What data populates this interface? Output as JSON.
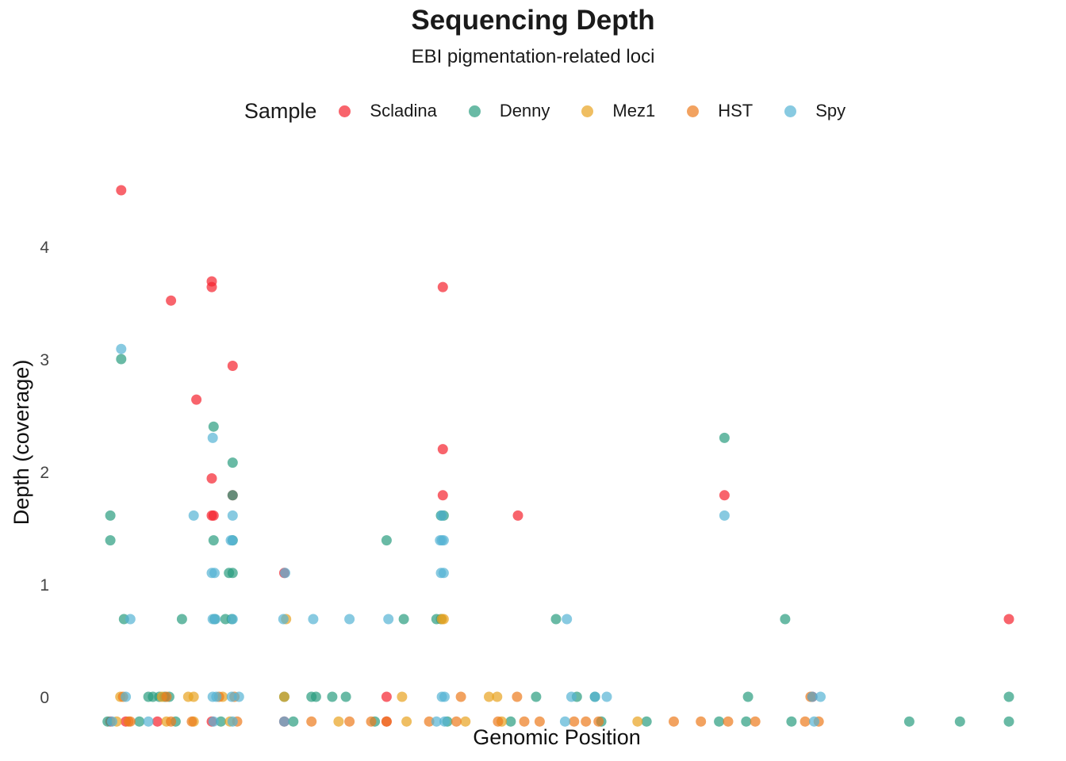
{
  "chart_data": {
    "type": "scatter",
    "title": "Sequencing Depth",
    "subtitle": "EBI pigmentation-related loci",
    "xlabel": "Genomic Position",
    "ylabel": "Depth (coverage)",
    "legend_title": "Sample",
    "legend_position": "top",
    "grid": false,
    "ylim": [
      -0.2,
      4.7
    ],
    "xlim": [
      0,
      100
    ],
    "y_ticks": [
      0,
      1,
      2,
      3,
      4
    ],
    "series": [
      {
        "name": "Scladina",
        "color": "#f5222d",
        "points": [
          [
            2,
            4.5
          ],
          [
            7.5,
            3.52
          ],
          [
            10.3,
            2.64
          ],
          [
            12,
            3.69
          ],
          [
            12,
            3.64
          ],
          [
            12,
            1.94
          ],
          [
            12,
            1.61
          ],
          [
            12.2,
            1.61
          ],
          [
            14.3,
            2.94
          ],
          [
            14.3,
            1.79
          ],
          [
            20,
            1.1
          ],
          [
            31.3,
            0
          ],
          [
            37.5,
            3.64
          ],
          [
            37.5,
            2.2
          ],
          [
            37.5,
            1.79
          ],
          [
            45.8,
            1.61
          ],
          [
            68.6,
            1.79
          ],
          [
            78.3,
            0
          ],
          [
            100,
            0.69
          ],
          [
            0.8,
            -0.22
          ],
          [
            2.5,
            -0.22
          ],
          [
            6,
            -0.22
          ],
          [
            12,
            -0.22
          ],
          [
            20,
            -0.22
          ],
          [
            31.3,
            -0.22
          ]
        ]
      },
      {
        "name": "Denny",
        "color": "#2a9d7f",
        "points": [
          [
            0.8,
            1.61
          ],
          [
            0.8,
            1.39
          ],
          [
            2,
            3.0
          ],
          [
            2.3,
            0.69
          ],
          [
            5,
            0
          ],
          [
            5.5,
            0
          ],
          [
            6.2,
            0
          ],
          [
            6.8,
            0
          ],
          [
            7.3,
            0
          ],
          [
            8.7,
            0.69
          ],
          [
            12.2,
            2.4
          ],
          [
            12.2,
            1.39
          ],
          [
            12.3,
            0.69
          ],
          [
            13.5,
            0.69
          ],
          [
            13.9,
            1.1
          ],
          [
            14.3,
            2.08
          ],
          [
            14.3,
            1.79
          ],
          [
            14.3,
            1.39
          ],
          [
            14.3,
            1.1
          ],
          [
            14.2,
            0.69
          ],
          [
            20,
            0
          ],
          [
            23,
            0
          ],
          [
            23.5,
            0
          ],
          [
            25.3,
            0
          ],
          [
            26.8,
            0
          ],
          [
            31.3,
            1.39
          ],
          [
            33.2,
            0.69
          ],
          [
            36.8,
            0.69
          ],
          [
            37.3,
            1.61
          ],
          [
            37.6,
            1.61
          ],
          [
            37.3,
            0.69
          ],
          [
            47.8,
            0
          ],
          [
            50,
            0.69
          ],
          [
            52.3,
            0
          ],
          [
            54.3,
            0
          ],
          [
            68.6,
            2.3
          ],
          [
            71.2,
            0
          ],
          [
            75.3,
            0.69
          ],
          [
            100,
            0
          ],
          [
            0.5,
            -0.22
          ],
          [
            4,
            -0.22
          ],
          [
            8,
            -0.22
          ],
          [
            13,
            -0.22
          ],
          [
            21,
            -0.22
          ],
          [
            30,
            -0.22
          ],
          [
            38,
            -0.22
          ],
          [
            45,
            -0.22
          ],
          [
            55,
            -0.22
          ],
          [
            60,
            -0.22
          ],
          [
            68,
            -0.22
          ],
          [
            71,
            -0.22
          ],
          [
            76,
            -0.22
          ],
          [
            89,
            -0.22
          ],
          [
            94.6,
            -0.22
          ],
          [
            100,
            -0.22
          ]
        ]
      },
      {
        "name": "Mez1",
        "color": "#e8a31f",
        "points": [
          [
            1.9,
            0
          ],
          [
            6.5,
            0
          ],
          [
            9.4,
            0
          ],
          [
            10,
            0
          ],
          [
            13.2,
            0
          ],
          [
            20.2,
            0.69
          ],
          [
            20,
            0
          ],
          [
            33,
            0
          ],
          [
            37.6,
            0.69
          ],
          [
            37.4,
            0.69
          ],
          [
            42.6,
            0
          ],
          [
            43.5,
            0
          ],
          [
            1.5,
            -0.22
          ],
          [
            7,
            -0.22
          ],
          [
            10,
            -0.22
          ],
          [
            14,
            -0.22
          ],
          [
            26,
            -0.22
          ],
          [
            33.5,
            -0.22
          ],
          [
            40,
            -0.22
          ],
          [
            44,
            -0.22
          ],
          [
            59,
            -0.22
          ]
        ]
      },
      {
        "name": "HST",
        "color": "#ec7a1c",
        "points": [
          [
            2.2,
            0
          ],
          [
            7,
            0
          ],
          [
            12.8,
            0
          ],
          [
            14.5,
            0
          ],
          [
            39.5,
            0
          ],
          [
            45.7,
            0
          ],
          [
            78.1,
            0
          ],
          [
            2.8,
            -0.22
          ],
          [
            3,
            -0.22
          ],
          [
            7.5,
            -0.22
          ],
          [
            9.8,
            -0.22
          ],
          [
            14.8,
            -0.22
          ],
          [
            23,
            -0.22
          ],
          [
            27.2,
            -0.22
          ],
          [
            29.6,
            -0.22
          ],
          [
            31.3,
            -0.22
          ],
          [
            36,
            -0.22
          ],
          [
            39,
            -0.22
          ],
          [
            43.6,
            -0.22
          ],
          [
            46.5,
            -0.22
          ],
          [
            48.2,
            -0.22
          ],
          [
            52,
            -0.22
          ],
          [
            53.3,
            -0.22
          ],
          [
            54.7,
            -0.22
          ],
          [
            63,
            -0.22
          ],
          [
            66,
            -0.22
          ],
          [
            69,
            -0.22
          ],
          [
            72,
            -0.22
          ],
          [
            77.5,
            -0.22
          ],
          [
            79,
            -0.22
          ]
        ]
      },
      {
        "name": "Spy",
        "color": "#55b4d4",
        "points": [
          [
            2,
            3.09
          ],
          [
            3,
            0.69
          ],
          [
            2.5,
            0
          ],
          [
            10,
            1.61
          ],
          [
            12.1,
            2.3
          ],
          [
            12,
            1.1
          ],
          [
            12.3,
            1.1
          ],
          [
            12.1,
            0.69
          ],
          [
            12.4,
            0.69
          ],
          [
            12.1,
            0
          ],
          [
            12.5,
            0
          ],
          [
            14.3,
            1.61
          ],
          [
            14.3,
            1.39
          ],
          [
            14.1,
            1.39
          ],
          [
            14.3,
            0.69
          ],
          [
            14.2,
            0
          ],
          [
            15,
            0
          ],
          [
            19.9,
            0.69
          ],
          [
            20.1,
            1.1
          ],
          [
            23.2,
            0.69
          ],
          [
            27.2,
            0.69
          ],
          [
            31.5,
            0.69
          ],
          [
            37.2,
            1.39
          ],
          [
            37.4,
            1.39
          ],
          [
            37.6,
            1.39
          ],
          [
            37.3,
            1.1
          ],
          [
            37.6,
            1.1
          ],
          [
            37.4,
            1.61
          ],
          [
            37.4,
            0
          ],
          [
            37.7,
            0
          ],
          [
            51.2,
            0.69
          ],
          [
            51.7,
            0
          ],
          [
            54.3,
            0
          ],
          [
            55.6,
            0
          ],
          [
            68.6,
            1.61
          ],
          [
            78.3,
            0
          ],
          [
            79.2,
            0
          ],
          [
            1,
            -0.22
          ],
          [
            5,
            -0.22
          ],
          [
            12.2,
            -0.22
          ],
          [
            14.3,
            -0.22
          ],
          [
            20,
            -0.22
          ],
          [
            36.8,
            -0.22
          ],
          [
            37.7,
            -0.22
          ],
          [
            51,
            -0.22
          ],
          [
            78.5,
            -0.22
          ]
        ]
      }
    ]
  }
}
